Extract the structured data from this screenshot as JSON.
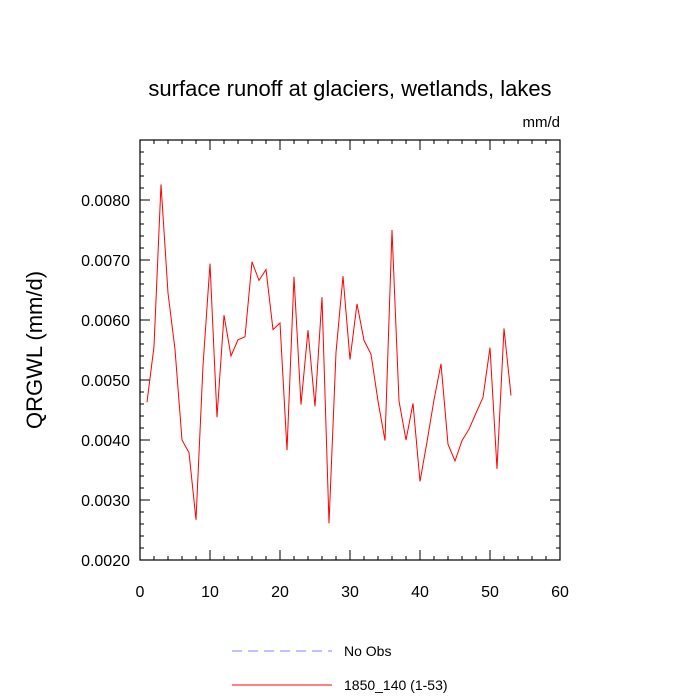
{
  "chart_data": {
    "type": "line",
    "title": "surface runoff at glaciers, wetlands, lakes",
    "units": "mm/d",
    "ylabel": "QRGWL  (mm/d)",
    "xlabel": "",
    "xlim": [
      0,
      60
    ],
    "ylim": [
      0.002,
      0.009
    ],
    "xticks": [
      0,
      10,
      20,
      30,
      40,
      50,
      60
    ],
    "xtick_labels": [
      "0",
      "10",
      "20",
      "30",
      "40",
      "50",
      "60"
    ],
    "yticks": [
      0.002,
      0.003,
      0.004,
      0.005,
      0.006,
      0.007,
      0.008
    ],
    "ytick_labels": [
      "0.0020",
      "0.0030",
      "0.0040",
      "0.0050",
      "0.0060",
      "0.0070",
      "0.0080"
    ],
    "grid": false,
    "legend_position": "bottom",
    "series": [
      {
        "name": "1850_140 (1-53)",
        "color": "#ff0000",
        "x": [
          1,
          2,
          3,
          4,
          5,
          6,
          7,
          8,
          9,
          10,
          11,
          12,
          13,
          14,
          15,
          16,
          17,
          18,
          19,
          20,
          21,
          22,
          23,
          24,
          25,
          26,
          27,
          28,
          29,
          30,
          31,
          32,
          33,
          34,
          35,
          36,
          37,
          38,
          39,
          40,
          41,
          42,
          43,
          44,
          45,
          46,
          47,
          48,
          49,
          50,
          51,
          52,
          53
        ],
        "values": [
          0.00463,
          0.00556,
          0.00826,
          0.00645,
          0.00551,
          0.004,
          0.00379,
          0.00267,
          0.00524,
          0.00694,
          0.00438,
          0.00608,
          0.0054,
          0.00567,
          0.00572,
          0.00697,
          0.00666,
          0.00684,
          0.00584,
          0.00595,
          0.00383,
          0.00672,
          0.00459,
          0.00583,
          0.00456,
          0.00638,
          0.00261,
          0.00546,
          0.00673,
          0.00534,
          0.00627,
          0.00566,
          0.00543,
          0.00465,
          0.00399,
          0.0075,
          0.00465,
          0.004,
          0.00461,
          0.00331,
          0.00397,
          0.00467,
          0.00527,
          0.00393,
          0.00365,
          0.00399,
          0.00418,
          0.00445,
          0.00471,
          0.00554,
          0.00352,
          0.00586,
          0.00474
        ]
      },
      {
        "name": "No Obs",
        "color": "#8080ff",
        "x": [],
        "values": []
      }
    ]
  }
}
